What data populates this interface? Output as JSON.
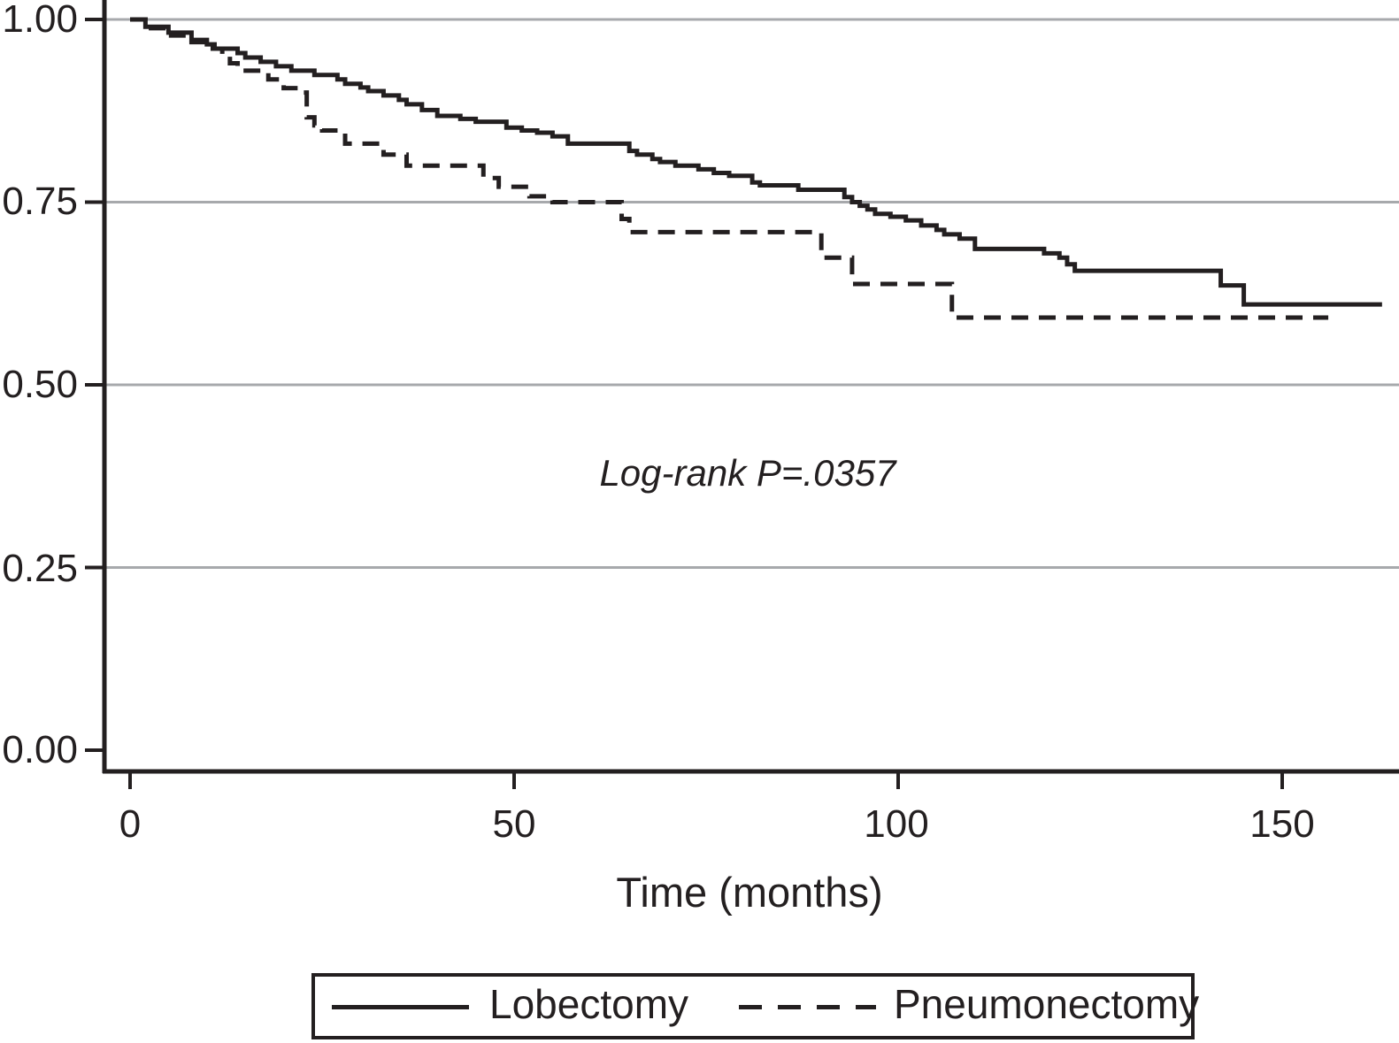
{
  "colors": {
    "ink": "#231f20",
    "grid": "#a7a9ac",
    "background": "#ffffff"
  },
  "chart_data": {
    "type": "line",
    "subtype": "kaplan-meier-step-curve",
    "title": "",
    "xlabel": "Time (months)",
    "ylabel": "",
    "xlim": [
      0,
      165
    ],
    "ylim": [
      0.0,
      1.0
    ],
    "grid": "horizontal-gridlines-only",
    "annotation": "Log-rank P=.0357",
    "xticks": {
      "values": [
        0,
        50,
        100,
        150
      ],
      "labels": [
        "0",
        "50",
        "100",
        "150"
      ]
    },
    "yticks": {
      "values": [
        1.0,
        0.75,
        0.5,
        0.25,
        0.0
      ],
      "labels": [
        "1.00",
        "0.75",
        "0.50",
        "0.25",
        "0.00"
      ]
    },
    "legend": {
      "position": "bottom",
      "entries": [
        {
          "label": "Lobectomy",
          "style": "solid"
        },
        {
          "label": "Pneumonectomy",
          "style": "dashed"
        }
      ]
    },
    "series": [
      {
        "name": "Lobectomy",
        "line": "solid",
        "points": [
          [
            0,
            1.0
          ],
          [
            2,
            0.99
          ],
          [
            5,
            0.982
          ],
          [
            8,
            0.972
          ],
          [
            10,
            0.966
          ],
          [
            11,
            0.96
          ],
          [
            14,
            0.954
          ],
          [
            15,
            0.948
          ],
          [
            17,
            0.942
          ],
          [
            19,
            0.936
          ],
          [
            21,
            0.93
          ],
          [
            24,
            0.924
          ],
          [
            27,
            0.918
          ],
          [
            28,
            0.912
          ],
          [
            30,
            0.907
          ],
          [
            31,
            0.902
          ],
          [
            33,
            0.896
          ],
          [
            35,
            0.89
          ],
          [
            36,
            0.884
          ],
          [
            38,
            0.876
          ],
          [
            40,
            0.868
          ],
          [
            43,
            0.864
          ],
          [
            45,
            0.86
          ],
          [
            49,
            0.852
          ],
          [
            51,
            0.848
          ],
          [
            53,
            0.845
          ],
          [
            55,
            0.84
          ],
          [
            57,
            0.83
          ],
          [
            65,
            0.82
          ],
          [
            66,
            0.815
          ],
          [
            68,
            0.809
          ],
          [
            69,
            0.805
          ],
          [
            71,
            0.8
          ],
          [
            74,
            0.795
          ],
          [
            76,
            0.79
          ],
          [
            78,
            0.786
          ],
          [
            81,
            0.777
          ],
          [
            82,
            0.773
          ],
          [
            87,
            0.767
          ],
          [
            93,
            0.757
          ],
          [
            94,
            0.75
          ],
          [
            95,
            0.745
          ],
          [
            96,
            0.74
          ],
          [
            97,
            0.734
          ],
          [
            99,
            0.73
          ],
          [
            101,
            0.725
          ],
          [
            103,
            0.718
          ],
          [
            105,
            0.712
          ],
          [
            106,
            0.706
          ],
          [
            108,
            0.7
          ],
          [
            110,
            0.686
          ],
          [
            119,
            0.68
          ],
          [
            121,
            0.674
          ],
          [
            122,
            0.665
          ],
          [
            123,
            0.656
          ],
          [
            142,
            0.636
          ],
          [
            145,
            0.61
          ],
          [
            163,
            0.61
          ]
        ]
      },
      {
        "name": "Pneumonectomy",
        "line": "dashed",
        "points": [
          [
            0,
            1.0
          ],
          [
            2,
            0.988
          ],
          [
            5,
            0.978
          ],
          [
            8,
            0.969
          ],
          [
            10,
            0.96
          ],
          [
            12,
            0.951
          ],
          [
            13,
            0.94
          ],
          [
            14,
            0.93
          ],
          [
            18,
            0.918
          ],
          [
            20,
            0.906
          ],
          [
            22,
            0.9
          ],
          [
            23,
            0.866
          ],
          [
            24,
            0.855
          ],
          [
            25,
            0.848
          ],
          [
            28,
            0.83
          ],
          [
            33,
            0.815
          ],
          [
            36,
            0.8
          ],
          [
            46,
            0.783
          ],
          [
            48,
            0.771
          ],
          [
            52,
            0.758
          ],
          [
            55,
            0.75
          ],
          [
            64,
            0.727
          ],
          [
            65,
            0.709
          ],
          [
            90,
            0.674
          ],
          [
            94,
            0.638
          ],
          [
            107,
            0.592
          ],
          [
            156,
            0.592
          ]
        ]
      }
    ]
  }
}
